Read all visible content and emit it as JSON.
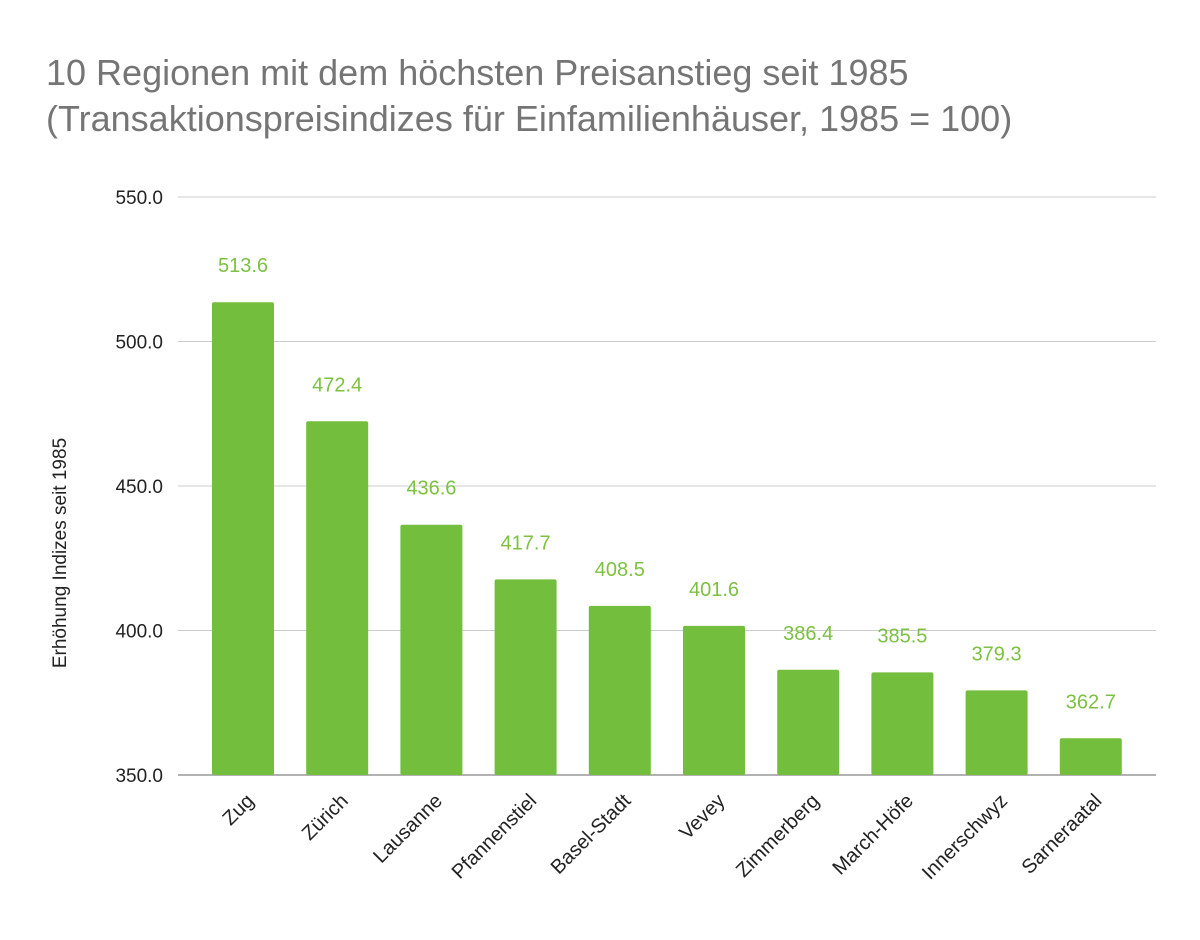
{
  "chart_data": {
    "type": "bar",
    "title": "10 Regionen mit dem höchsten Preisanstieg seit 1985",
    "subtitle": "(Transaktionspreisindizes für Einfamilienhäuser, 1985 = 100)",
    "xlabel": "",
    "ylabel": "Erhöhung Indizes seit 1985",
    "categories": [
      "Zug",
      "Zürich",
      "Lausanne",
      "Pfannenstiel",
      "Basel-Stadt",
      "Vevey",
      "Zimmerberg",
      "March-Höfe",
      "Innerschwyz",
      "Sarneraatal"
    ],
    "values": [
      513.6,
      472.4,
      436.6,
      417.7,
      408.5,
      401.6,
      386.4,
      385.5,
      379.3,
      362.7
    ],
    "data_labels": [
      "513.6",
      "472.4",
      "436.6",
      "417.7",
      "408.5",
      "401.6",
      "386.4",
      "385.5",
      "379.3",
      "362.7"
    ],
    "ylim": [
      350,
      550
    ],
    "yticks": [
      350,
      400,
      450,
      500,
      550
    ],
    "ytick_labels": [
      "350.0",
      "400.0",
      "450.0",
      "500.0",
      "550.0"
    ],
    "grid": true,
    "legend": "none",
    "colors": {
      "bar": "#73be3c",
      "data_label": "#7dc142",
      "grid": "#cccccc",
      "title": "#757575"
    }
  }
}
